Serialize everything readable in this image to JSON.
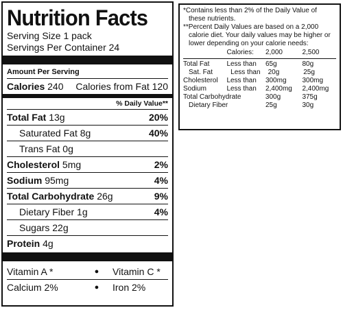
{
  "label": {
    "title": "Nutrition Facts",
    "serving_size": "Serving Size 1 pack",
    "servings_per_container": "Servings Per Container 24",
    "amount_per_serving": "Amount Per Serving",
    "calories_label": "Calories",
    "calories_value": "240",
    "calories_from_fat": "Calories from Fat 120",
    "daily_value_header": "% Daily Value**",
    "nutrients": [
      {
        "label": "Total Fat",
        "amount": "13g",
        "percent": "20%"
      },
      {
        "label": "Saturated Fat",
        "amount": "8g",
        "percent": "40%"
      },
      {
        "label": "Trans Fat",
        "amount": "0g",
        "percent": ""
      },
      {
        "label": "Cholesterol",
        "amount": "5mg",
        "percent": "2%"
      },
      {
        "label": "Sodium",
        "amount": "95mg",
        "percent": "4%"
      },
      {
        "label": "Total Carbohydrate",
        "amount": "26g",
        "percent": "9%"
      },
      {
        "label": "Dietary Fiber",
        "amount": "1g",
        "percent": "4%"
      },
      {
        "label": "Sugars",
        "amount": "22g",
        "percent": ""
      },
      {
        "label": "Protein",
        "amount": "4g",
        "percent": ""
      }
    ],
    "vitamins": [
      {
        "left": "Vitamin A *",
        "bullet": "●",
        "right": "Vitamin C *"
      },
      {
        "left": "Calcium 2%",
        "bullet": "●",
        "right": "Iron 2%"
      }
    ]
  },
  "footnote": {
    "line1": "*Contains less than 2% of the Daily Value of",
    "line2": "these nutrients.",
    "line3": "**Percent Daily Values are based on a 2,000",
    "line4": "calorie diet. Your daily values may be higher or",
    "line5": "lower depending on your calorie needs:",
    "table_header": {
      "label": "Calories:",
      "c1": "2,000",
      "c2": "2,500"
    },
    "table_rows": [
      {
        "nutrient": "Total Fat",
        "lt": "Less than",
        "v1": "65g",
        "v2": "80g"
      },
      {
        "nutrient": "Sat. Fat",
        "lt": "Less than",
        "v1": "20g",
        "v2": "25g"
      },
      {
        "nutrient": "Cholesterol",
        "lt": "Less than",
        "v1": "300mg",
        "v2": "300mg"
      },
      {
        "nutrient": "Sodium",
        "lt": "Less than",
        "v1": "2,400mg",
        "v2": "2,400mg"
      },
      {
        "nutrient": "Total Carbohydrate",
        "lt": "",
        "v1": "300g",
        "v2": "375g"
      },
      {
        "nutrient": "Dietary Fiber",
        "lt": "",
        "v1": "25g",
        "v2": "30g"
      }
    ]
  }
}
